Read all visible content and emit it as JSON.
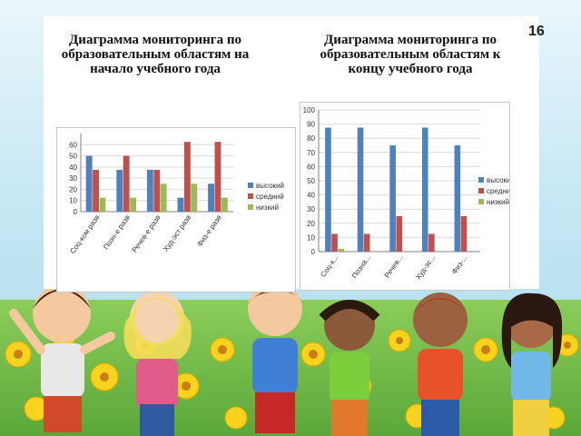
{
  "page_number": "16",
  "colors": {
    "high": "#4f81bd",
    "medium": "#c0504d",
    "low": "#9bbb59",
    "grid": "#d9d9d9",
    "axis": "#808080"
  },
  "chart_data": [
    {
      "type": "bar",
      "title": "Диаграмма мониторинга по образовательным областям на начало учебного года",
      "categories": [
        "Соц-ком разв",
        "Позн-е разв",
        "Речев-е разв",
        "Худ-эст разв",
        "Физ-е разв"
      ],
      "series": [
        {
          "name": "высокий",
          "values": [
            50,
            37.5,
            37.5,
            12.5,
            25
          ]
        },
        {
          "name": "средний",
          "values": [
            37.5,
            50,
            37.5,
            62.5,
            62.5
          ]
        },
        {
          "name": "низкий",
          "values": [
            12.5,
            12.5,
            25,
            25,
            12.5
          ]
        }
      ],
      "ylim": [
        0,
        70
      ],
      "yticks": [
        0,
        10,
        20,
        30,
        40,
        50,
        60
      ],
      "grid": true,
      "legend": "right"
    },
    {
      "type": "bar",
      "title": "Диаграмма мониторинга по образовательным областям к концу учебного года",
      "categories": [
        "Соц-к...",
        "Позна...",
        "Речев...",
        "Худ-эс...",
        "Физ-..."
      ],
      "series": [
        {
          "name": "высокий",
          "values": [
            87.5,
            87.5,
            75,
            87.5,
            75
          ]
        },
        {
          "name": "средний",
          "values": [
            12.5,
            12.5,
            25,
            12.5,
            25
          ]
        },
        {
          "name": "низкий",
          "values": [
            2,
            0,
            0,
            0,
            0
          ]
        }
      ],
      "ylim": [
        0,
        100
      ],
      "yticks": [
        0,
        10,
        20,
        30,
        40,
        50,
        60,
        70,
        80,
        90,
        100
      ],
      "grid": true,
      "legend": "right"
    }
  ]
}
